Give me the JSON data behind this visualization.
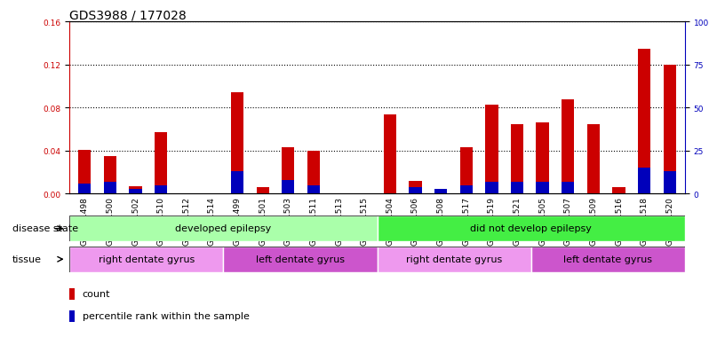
{
  "title": "GDS3988 / 177028",
  "samples": [
    "GSM671498",
    "GSM671500",
    "GSM671502",
    "GSM671510",
    "GSM671512",
    "GSM671514",
    "GSM671499",
    "GSM671501",
    "GSM671503",
    "GSM671511",
    "GSM671513",
    "GSM671515",
    "GSM671504",
    "GSM671506",
    "GSM671508",
    "GSM671517",
    "GSM671519",
    "GSM671521",
    "GSM671505",
    "GSM671507",
    "GSM671509",
    "GSM671516",
    "GSM671518",
    "GSM671520"
  ],
  "count_values": [
    0.041,
    0.035,
    0.007,
    0.057,
    0.0,
    0.0,
    0.094,
    0.006,
    0.043,
    0.04,
    0.0,
    0.0,
    0.074,
    0.012,
    0.0,
    0.043,
    0.083,
    0.065,
    0.066,
    0.088,
    0.065,
    0.006,
    0.135,
    0.12
  ],
  "percentile_values_pct": [
    6,
    7,
    3,
    5,
    0,
    0,
    13,
    0,
    8,
    5,
    0,
    0,
    0,
    4,
    3,
    5,
    7,
    7,
    7,
    7,
    0,
    0,
    15,
    13
  ],
  "count_color": "#cc0000",
  "percentile_color": "#0000bb",
  "ylim_left": [
    0,
    0.16
  ],
  "ylim_right": [
    0,
    100
  ],
  "yticks_left": [
    0,
    0.04,
    0.08,
    0.12,
    0.16
  ],
  "yticks_right": [
    0,
    25,
    50,
    75,
    100
  ],
  "disease_state_groups": [
    {
      "label": "developed epilepsy",
      "start": 0,
      "end": 12,
      "color": "#aaffaa"
    },
    {
      "label": "did not develop epilepsy",
      "start": 12,
      "end": 24,
      "color": "#44ee44"
    }
  ],
  "tissue_groups": [
    {
      "label": "right dentate gyrus",
      "start": 0,
      "end": 6,
      "color": "#ee99ee"
    },
    {
      "label": "left dentate gyrus",
      "start": 6,
      "end": 12,
      "color": "#cc55cc"
    },
    {
      "label": "right dentate gyrus",
      "start": 12,
      "end": 18,
      "color": "#ee99ee"
    },
    {
      "label": "left dentate gyrus",
      "start": 18,
      "end": 24,
      "color": "#cc55cc"
    }
  ],
  "legend_count_label": "count",
  "legend_percentile_label": "percentile rank within the sample",
  "bar_width": 0.5,
  "grid_linestyle": "dotted",
  "grid_color": "black",
  "grid_linewidth": 0.8,
  "title_fontsize": 10,
  "tick_fontsize": 6.5,
  "annotation_fontsize": 8,
  "legend_fontsize": 8
}
